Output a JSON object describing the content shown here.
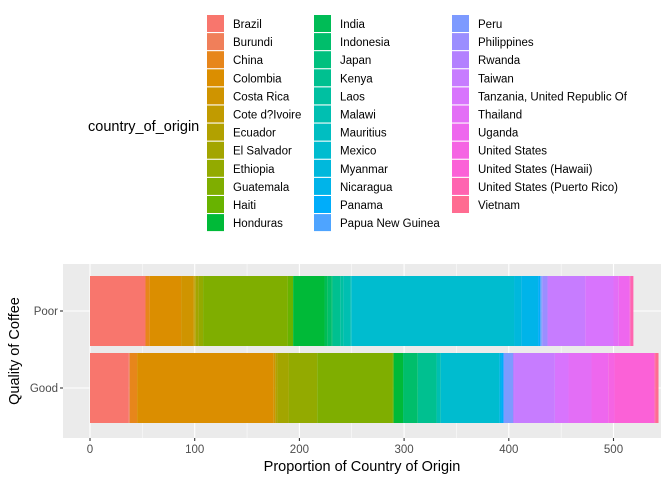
{
  "chart_data": {
    "type": "bar",
    "orientation": "horizontal",
    "stacked": true,
    "title": "",
    "xlabel": "Proportion of Country of Origin",
    "ylabel": "Quality of Coffee",
    "xlim": [
      0,
      540
    ],
    "x_ticks": [
      0,
      100,
      200,
      300,
      400,
      500
    ],
    "grid": true,
    "legend": {
      "title": "country_of_origin",
      "placement": "top",
      "columns": 3
    },
    "categories": [
      "Poor",
      "Good"
    ],
    "series": [
      {
        "name": "Brazil",
        "color": "#F8766D",
        "values": [
          53,
          37
        ]
      },
      {
        "name": "Burundi",
        "color": "#F07F5A",
        "values": [
          0,
          1
        ]
      },
      {
        "name": "China",
        "color": "#E7861B",
        "values": [
          4,
          7
        ]
      },
      {
        "name": "Colombia",
        "color": "#DB8E00",
        "values": [
          30,
          130
        ]
      },
      {
        "name": "Costa Rica",
        "color": "#CF9400",
        "values": [
          12,
          2
        ]
      },
      {
        "name": "Cote d?Ivoire",
        "color": "#C19B00",
        "values": [
          1,
          0
        ]
      },
      {
        "name": "Ecuador",
        "color": "#B2A100",
        "values": [
          1,
          2
        ]
      },
      {
        "name": "El Salvador",
        "color": "#A3A500",
        "values": [
          3,
          11
        ]
      },
      {
        "name": "Ethiopia",
        "color": "#93AA00",
        "values": [
          4,
          27
        ]
      },
      {
        "name": "Guatemala",
        "color": "#7FAE00",
        "values": [
          81,
          72
        ]
      },
      {
        "name": "Haiti",
        "color": "#68B300",
        "values": [
          5,
          1
        ]
      },
      {
        "name": "Honduras",
        "color": "#00BA38",
        "values": [
          30,
          9
        ]
      },
      {
        "name": "India",
        "color": "#00BC56",
        "values": [
          3,
          0
        ]
      },
      {
        "name": "Indonesia",
        "color": "#00BE6B",
        "values": [
          4,
          14
        ]
      },
      {
        "name": "Japan",
        "color": "#00C07E",
        "values": [
          1,
          0
        ]
      },
      {
        "name": "Kenya",
        "color": "#00C090",
        "values": [
          7,
          18
        ]
      },
      {
        "name": "Laos",
        "color": "#00C0A1",
        "values": [
          3,
          0
        ]
      },
      {
        "name": "Malawi",
        "color": "#00BFB1",
        "values": [
          7,
          4
        ]
      },
      {
        "name": "Mauritius",
        "color": "#00BEC1",
        "values": [
          1,
          0
        ]
      },
      {
        "name": "Mexico",
        "color": "#00BCCF",
        "values": [
          155,
          56
        ]
      },
      {
        "name": "Myanmar",
        "color": "#00B8DC",
        "values": [
          7,
          0
        ]
      },
      {
        "name": "Nicaragua",
        "color": "#00B4E9",
        "values": [
          16,
          2
        ]
      },
      {
        "name": "Panama",
        "color": "#00ADFA",
        "values": [
          2,
          2
        ]
      },
      {
        "name": "Papua New Guinea",
        "color": "#4EA4FF",
        "values": [
          1,
          0
        ]
      },
      {
        "name": "Peru",
        "color": "#7D9AFF",
        "values": [
          1,
          9
        ]
      },
      {
        "name": "Philippines",
        "color": "#9B8EFF",
        "values": [
          5,
          0
        ]
      },
      {
        "name": "Rwanda",
        "color": "#B380FF",
        "values": [
          0,
          1
        ]
      },
      {
        "name": "Taiwan",
        "color": "#C77CFF",
        "values": [
          36,
          39
        ]
      },
      {
        "name": "Tanzania, United Republic Of",
        "color": "#D874FD",
        "values": [
          27,
          13
        ]
      },
      {
        "name": "Thailand",
        "color": "#E36EF6",
        "values": [
          5,
          22
        ]
      },
      {
        "name": "Uganda",
        "color": "#EE67EE",
        "values": [
          10,
          16
        ]
      },
      {
        "name": "United States",
        "color": "#F564E3",
        "values": [
          1,
          6
        ]
      },
      {
        "name": "United States (Hawaii)",
        "color": "#FB61D7",
        "values": [
          0,
          38
        ]
      },
      {
        "name": "United States (Puerto Rico)",
        "color": "#FF64B0",
        "values": [
          3,
          1
        ]
      },
      {
        "name": "Vietnam",
        "color": "#FF6C91",
        "values": [
          0,
          3
        ]
      },
      {
        "name": "",
        "color": "#FF6F7D",
        "values": [
          0,
          0
        ]
      }
    ]
  }
}
